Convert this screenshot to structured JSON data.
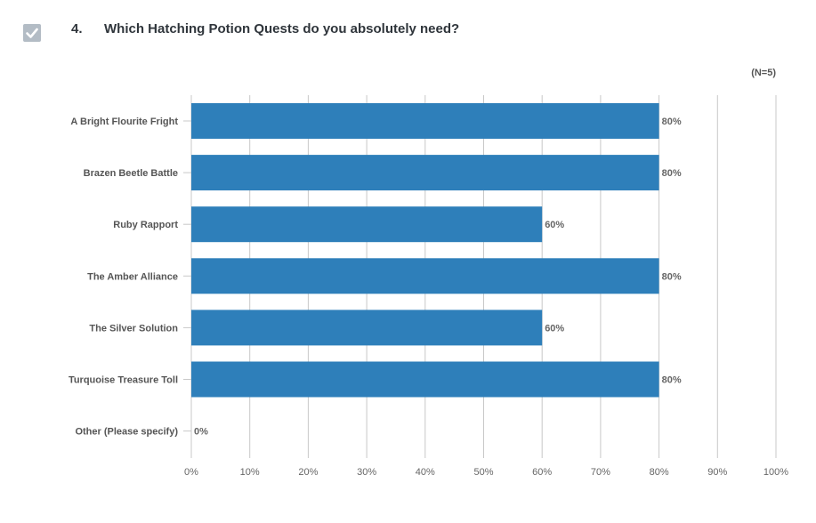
{
  "question": {
    "number": "4.",
    "text": "Which Hatching Potion Quests do you absolutely need?",
    "check_icon": "checkmark-icon"
  },
  "n_label": "(N=5)",
  "chart_data": {
    "type": "bar",
    "orientation": "horizontal",
    "categories": [
      "A Bright Flourite Fright",
      "Brazen Beetle Battle",
      "Ruby Rapport",
      "The Amber Alliance",
      "The Silver Solution",
      "Turquoise Treasure Toll",
      "Other (Please specify)"
    ],
    "values": [
      80,
      80,
      60,
      80,
      60,
      80,
      0
    ],
    "value_labels": [
      "80%",
      "80%",
      "60%",
      "80%",
      "60%",
      "80%",
      "0%"
    ],
    "x_ticks": [
      "0%",
      "10%",
      "20%",
      "30%",
      "40%",
      "50%",
      "60%",
      "70%",
      "80%",
      "90%",
      "100%"
    ],
    "xlim": [
      0,
      100
    ],
    "grid": true,
    "bar_color": "#2e7fba",
    "grid_color": "#c8c8c8"
  }
}
